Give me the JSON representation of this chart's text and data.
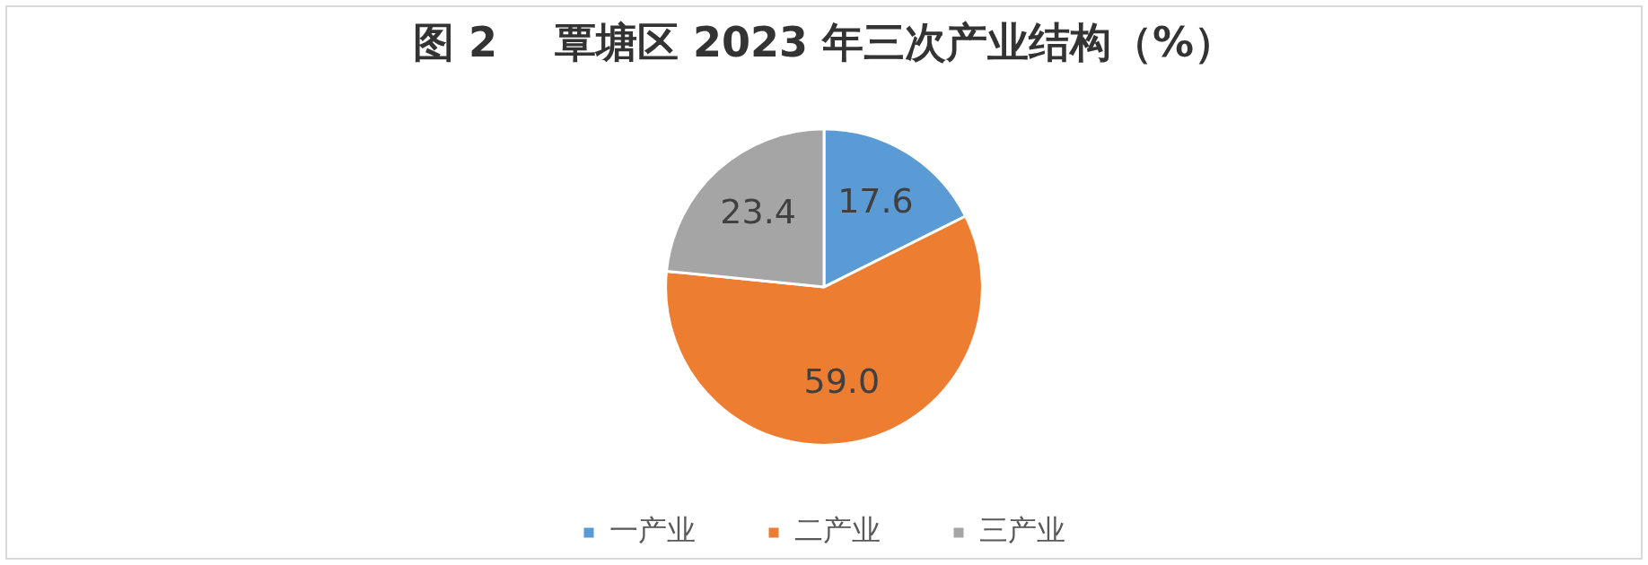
{
  "chart_data": {
    "type": "pie",
    "title": "图 2    覃塘区 2023 年三次产业结构（%）",
    "categories": [
      "一产业",
      "二产业",
      "三产业"
    ],
    "values": [
      17.6,
      59.0,
      23.4
    ],
    "value_labels": [
      "17.6",
      "59.0",
      "23.4"
    ],
    "colors": [
      "#5b9bd5",
      "#ed7d31",
      "#a5a5a5"
    ],
    "legend": "bottom"
  }
}
